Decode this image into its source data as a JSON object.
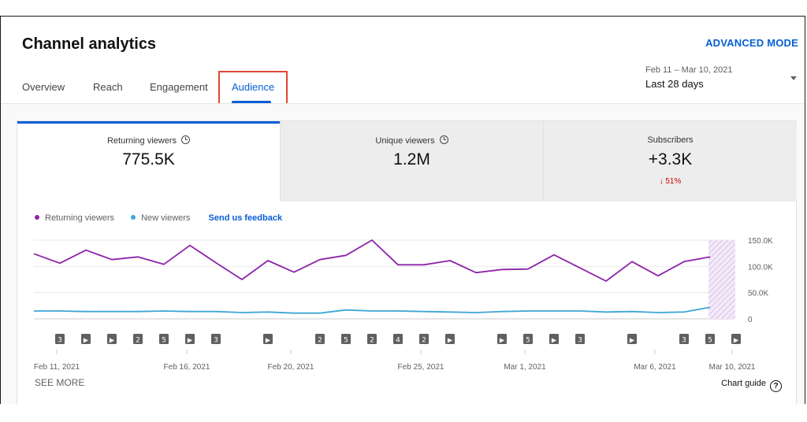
{
  "header": {
    "title": "Channel analytics",
    "advanced_mode": "ADVANCED MODE"
  },
  "tabs": [
    {
      "label": "Overview",
      "active": false
    },
    {
      "label": "Reach",
      "active": false
    },
    {
      "label": "Engagement",
      "active": false
    },
    {
      "label": "Audience",
      "active": true
    }
  ],
  "date_range": {
    "dates": "Feb 11 – Mar 10, 2021",
    "label": "Last 28 days"
  },
  "metrics": [
    {
      "title": "Returning viewers",
      "value": "775.5K",
      "delta": ""
    },
    {
      "title": "Unique viewers",
      "value": "1.2M",
      "delta": ""
    },
    {
      "title": "Subscribers",
      "value": "+3.3K",
      "delta": "↓ 51%"
    }
  ],
  "legend": {
    "returning": "Returning viewers",
    "new": "New viewers",
    "feedback": "Send us feedback"
  },
  "colors": {
    "returning": "#8e24aa",
    "new": "#3ea6d5",
    "accent": "#065fd4",
    "negative": "#cc0000"
  },
  "chart_data": {
    "type": "line",
    "y_ticks": [
      "150.0K",
      "100.0K",
      "50.0K",
      "0"
    ],
    "ylim": [
      0,
      150000
    ],
    "x_tick_labels": [
      "Feb 11, 2021",
      "Feb 16, 2021",
      "Feb 20, 2021",
      "Feb 25, 2021",
      "Mar 1, 2021",
      "Mar 6, 2021",
      "Mar 10, 2021"
    ],
    "series": [
      {
        "name": "Returning viewers",
        "values": [
          124000,
          106000,
          131000,
          113000,
          118000,
          104000,
          140000,
          107000,
          75000,
          111000,
          89000,
          113000,
          121000,
          150000,
          103000,
          103000,
          111000,
          88000,
          94000,
          95000,
          122000,
          97000,
          72000,
          109000,
          82000,
          109000,
          118000
        ]
      },
      {
        "name": "New viewers",
        "values": [
          15000,
          15000,
          14000,
          14000,
          14000,
          15000,
          14000,
          14000,
          12000,
          13000,
          11000,
          11000,
          17000,
          15000,
          15000,
          14000,
          13000,
          12000,
          14000,
          15000,
          15000,
          15000,
          13000,
          14000,
          12000,
          13000,
          22000
        ]
      }
    ],
    "markers": [
      "3",
      "▶",
      "▶",
      "2",
      "5",
      "▶",
      "3",
      "",
      "▶",
      "",
      "2",
      "5",
      "2",
      "4",
      "2",
      "▶",
      "",
      "▶",
      "5",
      "▶",
      "3",
      "",
      "▶",
      "",
      "3",
      "5",
      "▶"
    ]
  },
  "footer": {
    "see_more": "SEE MORE",
    "chart_guide": "Chart guide",
    "help_glyph": "?"
  }
}
